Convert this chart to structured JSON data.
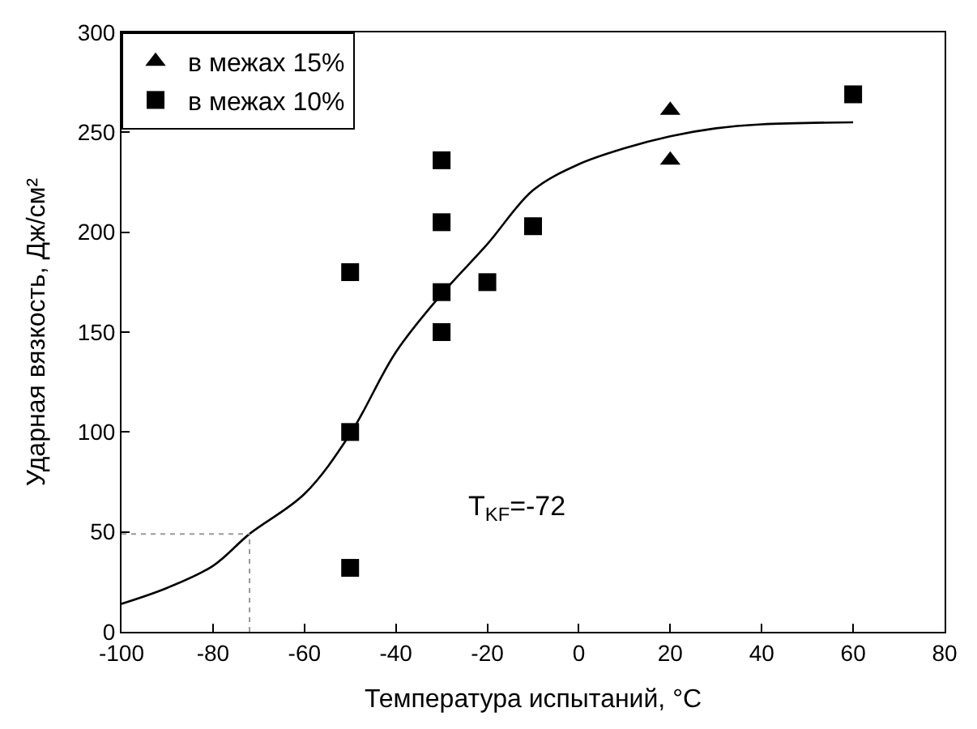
{
  "chart_data": {
    "type": "scatter",
    "xlabel": "Температура испытаний, °C",
    "ylabel": "Ударная вязкость, Дж/см²",
    "xlim": [
      -100,
      80
    ],
    "xticks": [
      -100,
      -80,
      -60,
      -40,
      -20,
      0,
      20,
      40,
      60,
      80
    ],
    "ylim": [
      0,
      300
    ],
    "yticks": [
      0,
      50,
      100,
      150,
      200,
      250,
      300
    ],
    "legend": "top left",
    "series": [
      {
        "name": "в межах 15%",
        "color": "#000000",
        "marker": "triangle",
        "x": [
          20,
          20
        ],
        "values": [
          261,
          236
        ]
      },
      {
        "name": "в межах 10%",
        "color": "#000000",
        "marker": "square",
        "x": [
          -50,
          -50,
          -50,
          -30,
          -30,
          -30,
          -30,
          -20,
          -10,
          60
        ],
        "values": [
          180,
          100,
          32,
          236,
          205,
          170,
          150,
          175,
          203,
          269
        ]
      },
      {
        "type": "line",
        "color": "#000000",
        "x": [
          -100,
          -90,
          -80,
          -72,
          -60,
          -50,
          -40,
          -30,
          -20,
          -10,
          0,
          10,
          20,
          30,
          40,
          60
        ],
        "values": [
          14,
          22,
          33,
          49,
          69,
          99,
          140,
          169,
          194,
          221,
          234,
          242,
          248,
          252,
          254,
          255
        ]
      }
    ],
    "ref_lines": [
      {
        "axis": "x",
        "value": -72,
        "color": "#999999",
        "line_style": "dotted"
      },
      {
        "axis": "y",
        "value": 49,
        "color": "#999999",
        "line_style": "dotted"
      }
    ],
    "annotations": [
      "T$_{KF}$=-72"
    ]
  }
}
